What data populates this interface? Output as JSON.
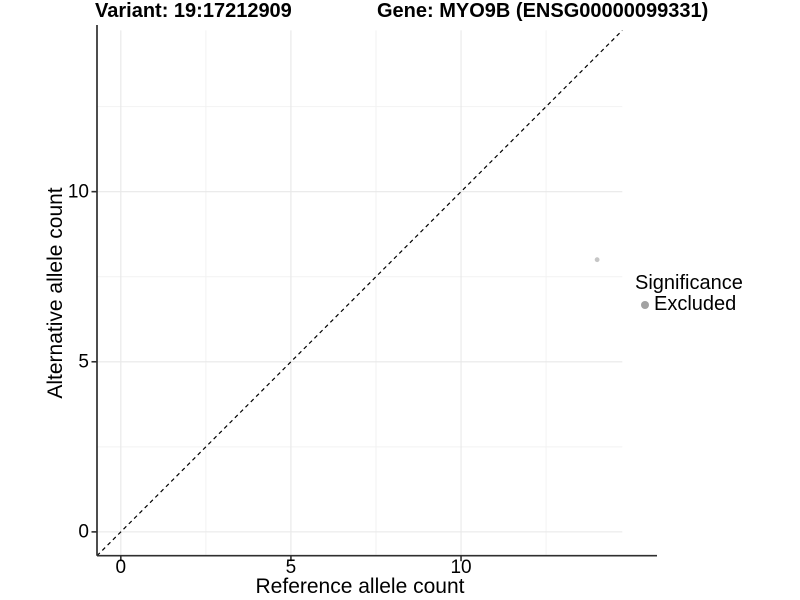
{
  "chart_data": {
    "type": "scatter",
    "titles": {
      "left": "Variant: 19:17212909",
      "right": "Gene: MYO9B (ENSG00000099331)"
    },
    "xlabel": "Reference allele count",
    "ylabel": "Alternative allele count",
    "xlim": [
      -0.7,
      14.74
    ],
    "ylim": [
      -0.7,
      14.74
    ],
    "x_ticks": [
      0,
      5,
      10
    ],
    "y_ticks": [
      0,
      5,
      10
    ],
    "x_minor_ticks": [
      2.5,
      7.5,
      12.5
    ],
    "y_minor_ticks": [
      2.5,
      7.5,
      12.5
    ],
    "grid": "major+minor",
    "reference_line": {
      "type": "identity",
      "slope": 1,
      "intercept": 0,
      "style": "dashed",
      "color": "#000000"
    },
    "series": [
      {
        "name": "Excluded",
        "color": "#c6c6c6",
        "points": [
          {
            "x": 14,
            "y": 8
          }
        ]
      }
    ],
    "legend": {
      "title": "Significance",
      "position": "right",
      "entries": [
        {
          "label": "Excluded",
          "swatch_color": "#a2a2a2"
        }
      ]
    },
    "colors": {
      "background": "#ffffff",
      "grid_major": "#e8e8e8",
      "grid_minor": "#f2f2f2",
      "axis_line": "#2f2f2f",
      "text": "#000000"
    }
  }
}
